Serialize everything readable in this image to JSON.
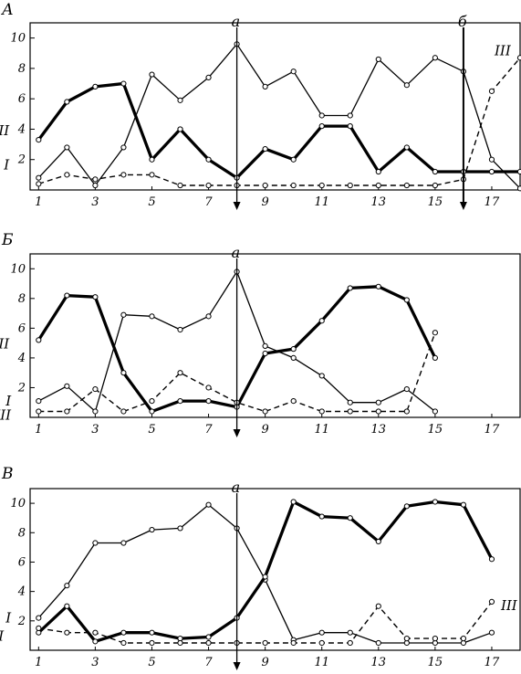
{
  "chart_data": [
    {
      "type": "line",
      "panel_label": "А",
      "x": [
        1,
        2,
        3,
        4,
        5,
        6,
        7,
        8,
        9,
        10,
        11,
        12,
        13,
        14,
        15,
        16,
        17,
        18
      ],
      "xlim": [
        0.7,
        18
      ],
      "ylim": [
        0,
        11
      ],
      "xticks": [
        "1",
        "3",
        "5",
        "7",
        "9",
        "11",
        "13",
        "15",
        "17"
      ],
      "yticks": [
        "2",
        "4",
        "6",
        "8",
        "10"
      ],
      "series": [
        {
          "name": "I",
          "style": "thin",
          "points": [
            [
              1,
              0.8
            ],
            [
              2,
              2.8
            ],
            [
              3,
              0.3
            ],
            [
              4,
              2.8
            ],
            [
              5,
              7.6
            ],
            [
              6,
              5.9
            ],
            [
              7,
              7.4
            ],
            [
              8,
              9.6
            ],
            [
              9,
              6.8
            ],
            [
              10,
              7.8
            ],
            [
              11,
              4.9
            ],
            [
              12,
              4.9
            ],
            [
              13,
              8.6
            ],
            [
              14,
              6.9
            ],
            [
              15,
              8.7
            ],
            [
              16,
              7.8
            ],
            [
              17,
              2.0
            ],
            [
              18,
              0.1
            ]
          ]
        },
        {
          "name": "II",
          "style": "thick",
          "points": [
            [
              1,
              3.3
            ],
            [
              2,
              5.8
            ],
            [
              3,
              6.8
            ],
            [
              4,
              7.0
            ],
            [
              5,
              2.0
            ],
            [
              6,
              4.0
            ],
            [
              7,
              2.0
            ],
            [
              8,
              0.8
            ],
            [
              9,
              2.7
            ],
            [
              10,
              2.0
            ],
            [
              11,
              4.2
            ],
            [
              12,
              4.2
            ],
            [
              13,
              1.2
            ],
            [
              14,
              2.8
            ],
            [
              15,
              1.2
            ],
            [
              16,
              1.2
            ],
            [
              17,
              1.2
            ],
            [
              18,
              1.2
            ]
          ]
        },
        {
          "name": "III",
          "style": "dashed",
          "points": [
            [
              1,
              0.4
            ],
            [
              2,
              1.0
            ],
            [
              3,
              0.7
            ],
            [
              4,
              1.0
            ],
            [
              5,
              1.0
            ],
            [
              6,
              0.3
            ],
            [
              7,
              0.3
            ],
            [
              8,
              0.3
            ],
            [
              9,
              0.3
            ],
            [
              10,
              0.3
            ],
            [
              11,
              0.3
            ],
            [
              12,
              0.3
            ],
            [
              13,
              0.3
            ],
            [
              14,
              0.3
            ],
            [
              15,
              0.3
            ],
            [
              16,
              0.7
            ],
            [
              17,
              6.5
            ],
            [
              18,
              8.7
            ]
          ]
        }
      ],
      "annotations": [
        {
          "label": "а",
          "x": 8
        },
        {
          "label": "б",
          "x": 16
        }
      ]
    },
    {
      "type": "line",
      "panel_label": "Б",
      "x": [
        1,
        2,
        3,
        4,
        5,
        6,
        7,
        8,
        9,
        10,
        11,
        12,
        13,
        14,
        15
      ],
      "xlim": [
        0.7,
        18
      ],
      "ylim": [
        0,
        11
      ],
      "xticks": [
        "1",
        "3",
        "5",
        "7",
        "9",
        "11",
        "13",
        "15",
        "17"
      ],
      "yticks": [
        "2",
        "4",
        "6",
        "8",
        "10"
      ],
      "series": [
        {
          "name": "I",
          "style": "thin",
          "points": [
            [
              1,
              1.1
            ],
            [
              2,
              2.1
            ],
            [
              3,
              0.4
            ],
            [
              4,
              6.9
            ],
            [
              5,
              6.8
            ],
            [
              6,
              5.9
            ],
            [
              7,
              6.8
            ],
            [
              8,
              9.8
            ],
            [
              9,
              4.8
            ],
            [
              10,
              4.0
            ],
            [
              11,
              2.8
            ],
            [
              12,
              1.0
            ],
            [
              13,
              1.0
            ],
            [
              14,
              1.9
            ],
            [
              15,
              0.4
            ]
          ]
        },
        {
          "name": "II",
          "style": "thick",
          "points": [
            [
              1,
              5.2
            ],
            [
              2,
              8.2
            ],
            [
              3,
              8.1
            ],
            [
              4,
              3.0
            ],
            [
              5,
              0.4
            ],
            [
              6,
              1.1
            ],
            [
              7,
              1.1
            ],
            [
              8,
              0.7
            ],
            [
              9,
              4.3
            ],
            [
              10,
              4.6
            ],
            [
              11,
              6.5
            ],
            [
              12,
              8.7
            ],
            [
              13,
              8.8
            ],
            [
              14,
              7.9
            ],
            [
              15,
              4.0
            ]
          ]
        },
        {
          "name": "III",
          "style": "dashed",
          "points": [
            [
              1,
              0.4
            ],
            [
              2,
              0.4
            ],
            [
              3,
              1.9
            ],
            [
              4,
              0.4
            ],
            [
              5,
              1.1
            ],
            [
              6,
              3.0
            ],
            [
              7,
              2.0
            ],
            [
              8,
              1.0
            ],
            [
              9,
              0.4
            ],
            [
              10,
              1.1
            ],
            [
              11,
              0.4
            ],
            [
              12,
              0.4
            ],
            [
              13,
              0.4
            ],
            [
              14,
              0.4
            ],
            [
              15,
              5.7
            ]
          ]
        }
      ],
      "annotations": [
        {
          "label": "а",
          "x": 8
        }
      ]
    },
    {
      "type": "line",
      "panel_label": "В",
      "x": [
        1,
        2,
        3,
        4,
        5,
        6,
        7,
        8,
        9,
        10,
        11,
        12,
        13,
        14,
        15,
        16,
        17
      ],
      "xlim": [
        0.7,
        18
      ],
      "ylim": [
        0,
        11
      ],
      "xticks": [
        "1",
        "3",
        "5",
        "7",
        "9",
        "11",
        "13",
        "15",
        "17"
      ],
      "yticks": [
        "2",
        "4",
        "6",
        "8",
        "10"
      ],
      "series": [
        {
          "name": "I",
          "style": "thin",
          "points": [
            [
              1,
              2.2
            ],
            [
              2,
              4.4
            ],
            [
              3,
              7.3
            ],
            [
              4,
              7.3
            ],
            [
              5,
              8.2
            ],
            [
              6,
              8.3
            ],
            [
              7,
              9.9
            ],
            [
              8,
              8.3
            ],
            [
              9,
              4.8
            ],
            [
              10,
              0.7
            ],
            [
              11,
              1.2
            ],
            [
              12,
              1.2
            ],
            [
              13,
              0.5
            ],
            [
              14,
              0.5
            ],
            [
              15,
              0.5
            ],
            [
              16,
              0.5
            ],
            [
              17,
              1.2
            ]
          ]
        },
        {
          "name": "II",
          "style": "thick",
          "points": [
            [
              1,
              1.2
            ],
            [
              2,
              3.0
            ],
            [
              3,
              0.6
            ],
            [
              4,
              1.2
            ],
            [
              5,
              1.2
            ],
            [
              6,
              0.8
            ],
            [
              7,
              0.9
            ],
            [
              8,
              2.2
            ],
            [
              9,
              5.0
            ],
            [
              10,
              10.1
            ],
            [
              11,
              9.1
            ],
            [
              12,
              9.0
            ],
            [
              13,
              7.4
            ],
            [
              14,
              9.8
            ],
            [
              15,
              10.1
            ],
            [
              16,
              9.9
            ],
            [
              17,
              6.2
            ]
          ]
        },
        {
          "name": "III",
          "style": "dashed",
          "points": [
            [
              1,
              1.5
            ],
            [
              2,
              1.2
            ],
            [
              3,
              1.2
            ],
            [
              4,
              0.5
            ],
            [
              5,
              0.5
            ],
            [
              6,
              0.5
            ],
            [
              7,
              0.5
            ],
            [
              8,
              0.5
            ],
            [
              9,
              0.5
            ],
            [
              10,
              0.5
            ],
            [
              11,
              0.5
            ],
            [
              12,
              0.5
            ],
            [
              13,
              3.0
            ],
            [
              14,
              0.8
            ],
            [
              15,
              0.8
            ],
            [
              16,
              0.8
            ],
            [
              17,
              3.3
            ]
          ]
        }
      ],
      "annotations": [
        {
          "label": "а",
          "x": 8
        }
      ]
    }
  ]
}
